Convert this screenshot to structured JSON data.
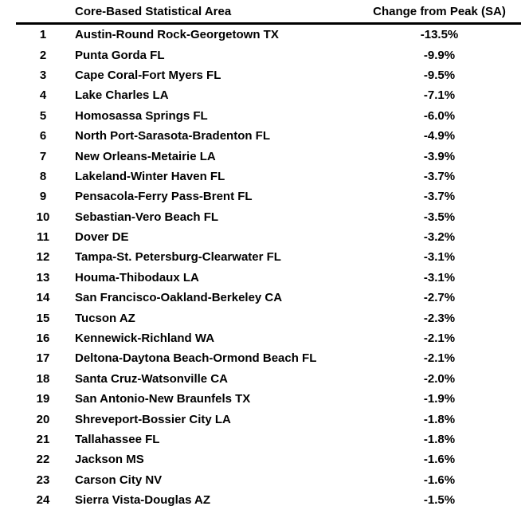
{
  "table": {
    "headers": {
      "rank": "",
      "area": "Core-Based Statistical Area",
      "change": "Change from Peak (SA)"
    },
    "rows": [
      {
        "rank": "1",
        "area": "Austin-Round Rock-Georgetown TX",
        "change": "-13.5%"
      },
      {
        "rank": "2",
        "area": "Punta Gorda FL",
        "change": "-9.9%"
      },
      {
        "rank": "3",
        "area": "Cape Coral-Fort Myers FL",
        "change": "-9.5%"
      },
      {
        "rank": "4",
        "area": "Lake Charles LA",
        "change": "-7.1%"
      },
      {
        "rank": "5",
        "area": "Homosassa Springs FL",
        "change": "-6.0%"
      },
      {
        "rank": "6",
        "area": "North Port-Sarasota-Bradenton FL",
        "change": "-4.9%"
      },
      {
        "rank": "7",
        "area": "New Orleans-Metairie LA",
        "change": "-3.9%"
      },
      {
        "rank": "8",
        "area": "Lakeland-Winter Haven FL",
        "change": "-3.7%"
      },
      {
        "rank": "9",
        "area": "Pensacola-Ferry Pass-Brent FL",
        "change": "-3.7%"
      },
      {
        "rank": "10",
        "area": "Sebastian-Vero Beach FL",
        "change": "-3.5%"
      },
      {
        "rank": "11",
        "area": "Dover DE",
        "change": "-3.2%"
      },
      {
        "rank": "12",
        "area": "Tampa-St. Petersburg-Clearwater FL",
        "change": "-3.1%"
      },
      {
        "rank": "13",
        "area": "Houma-Thibodaux LA",
        "change": "-3.1%"
      },
      {
        "rank": "14",
        "area": "San Francisco-Oakland-Berkeley CA",
        "change": "-2.7%"
      },
      {
        "rank": "15",
        "area": "Tucson AZ",
        "change": "-2.3%"
      },
      {
        "rank": "16",
        "area": "Kennewick-Richland WA",
        "change": "-2.1%"
      },
      {
        "rank": "17",
        "area": "Deltona-Daytona Beach-Ormond Beach FL",
        "change": "-2.1%"
      },
      {
        "rank": "18",
        "area": "Santa Cruz-Watsonville CA",
        "change": "-2.0%"
      },
      {
        "rank": "19",
        "area": "San Antonio-New Braunfels TX",
        "change": "-1.9%"
      },
      {
        "rank": "20",
        "area": "Shreveport-Bossier City LA",
        "change": "-1.8%"
      },
      {
        "rank": "21",
        "area": "Tallahassee FL",
        "change": "-1.8%"
      },
      {
        "rank": "22",
        "area": "Jackson MS",
        "change": "-1.6%"
      },
      {
        "rank": "23",
        "area": "Carson City NV",
        "change": "-1.6%"
      },
      {
        "rank": "24",
        "area": "Sierra Vista-Douglas AZ",
        "change": "-1.5%"
      }
    ]
  },
  "chart_data": {
    "type": "table",
    "title": "",
    "columns": [
      "Rank",
      "Core-Based Statistical Area",
      "Change from Peak (SA)"
    ],
    "categories": [
      "Austin-Round Rock-Georgetown TX",
      "Punta Gorda FL",
      "Cape Coral-Fort Myers FL",
      "Lake Charles LA",
      "Homosassa Springs FL",
      "North Port-Sarasota-Bradenton FL",
      "New Orleans-Metairie LA",
      "Lakeland-Winter Haven FL",
      "Pensacola-Ferry Pass-Brent FL",
      "Sebastian-Vero Beach FL",
      "Dover DE",
      "Tampa-St. Petersburg-Clearwater FL",
      "Houma-Thibodaux LA",
      "San Francisco-Oakland-Berkeley CA",
      "Tucson AZ",
      "Kennewick-Richland WA",
      "Deltona-Daytona Beach-Ormond Beach FL",
      "Santa Cruz-Watsonville CA",
      "San Antonio-New Braunfels TX",
      "Shreveport-Bossier City LA",
      "Tallahassee FL",
      "Jackson MS",
      "Carson City NV",
      "Sierra Vista-Douglas AZ"
    ],
    "values": [
      -13.5,
      -9.9,
      -9.5,
      -7.1,
      -6.0,
      -4.9,
      -3.9,
      -3.7,
      -3.7,
      -3.5,
      -3.2,
      -3.1,
      -3.1,
      -2.7,
      -2.3,
      -2.1,
      -2.1,
      -2.0,
      -1.9,
      -1.8,
      -1.8,
      -1.6,
      -1.6,
      -1.5
    ],
    "value_unit": "percent",
    "text_color": "#000000",
    "background_color": "#ffffff"
  }
}
